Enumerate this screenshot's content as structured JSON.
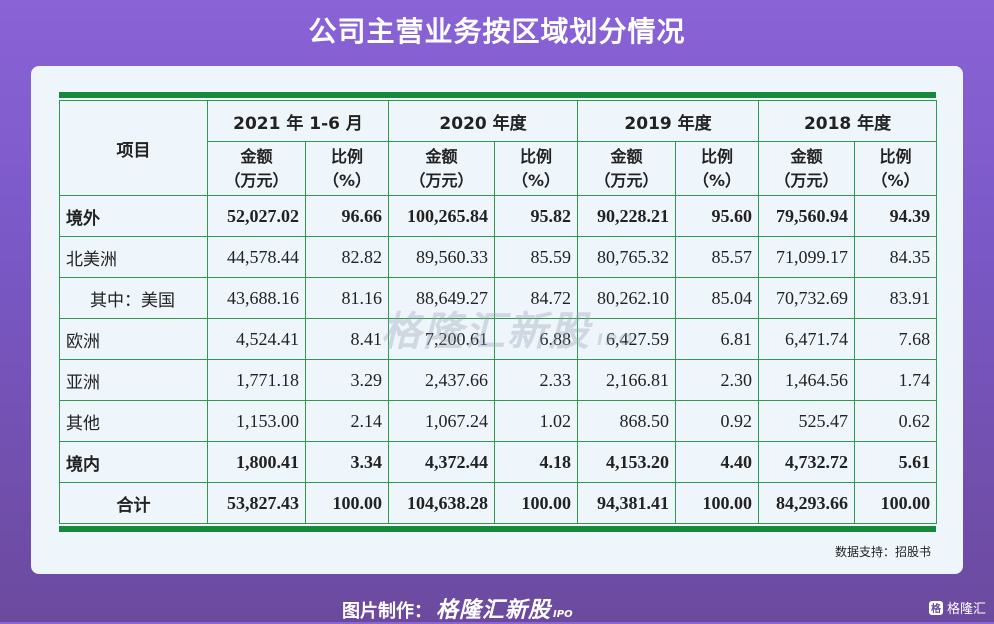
{
  "title": "公司主营业务按区域划分情况",
  "table": {
    "item_header": "项目",
    "periods": [
      "2021 年 1-6 月",
      "2020 年度",
      "2019 年度",
      "2018 年度"
    ],
    "amount_header": [
      "金额",
      "（万元）"
    ],
    "ratio_header": [
      "比例",
      "（%）"
    ],
    "rows": [
      {
        "label": "境外",
        "bold": true,
        "values": [
          "52,027.02",
          "96.66",
          "100,265.84",
          "95.82",
          "90,228.21",
          "95.60",
          "79,560.94",
          "94.39"
        ]
      },
      {
        "label": "北美洲",
        "bold": false,
        "values": [
          "44,578.44",
          "82.82",
          "89,560.33",
          "85.59",
          "80,765.32",
          "85.57",
          "71,099.17",
          "84.35"
        ]
      },
      {
        "label": "其中：美国",
        "bold": false,
        "indent": true,
        "values": [
          "43,688.16",
          "81.16",
          "88,649.27",
          "84.72",
          "80,262.10",
          "85.04",
          "70,732.69",
          "83.91"
        ]
      },
      {
        "label": "欧洲",
        "bold": false,
        "values": [
          "4,524.41",
          "8.41",
          "7,200.61",
          "6.88",
          "6,427.59",
          "6.81",
          "6,471.74",
          "7.68"
        ]
      },
      {
        "label": "亚洲",
        "bold": false,
        "values": [
          "1,771.18",
          "3.29",
          "2,437.66",
          "2.33",
          "2,166.81",
          "2.30",
          "1,464.56",
          "1.74"
        ]
      },
      {
        "label": "其他",
        "bold": false,
        "values": [
          "1,153.00",
          "2.14",
          "1,067.24",
          "1.02",
          "868.50",
          "0.92",
          "525.47",
          "0.62"
        ]
      },
      {
        "label": "境内",
        "bold": true,
        "values": [
          "1,800.41",
          "3.34",
          "4,372.44",
          "4.18",
          "4,153.20",
          "4.40",
          "4,732.72",
          "5.61"
        ]
      },
      {
        "label": "合计",
        "bold": true,
        "center": true,
        "values": [
          "53,827.43",
          "100.00",
          "104,638.28",
          "100.00",
          "94,381.41",
          "100.00",
          "84,293.66",
          "100.00"
        ]
      }
    ]
  },
  "watermark": {
    "text": "格隆汇新股",
    "suffix": "IPO"
  },
  "source": "数据支持：招股书",
  "footer": {
    "prefix": "图片制作：",
    "brand": "格隆汇新股",
    "suffix": "IPO"
  },
  "corner_logo": {
    "glyph": "格",
    "text": "格隆汇"
  },
  "colors": {
    "accent_green": "#168a3a",
    "background_purple": "#7a58c6",
    "card": "#eef5fb"
  }
}
